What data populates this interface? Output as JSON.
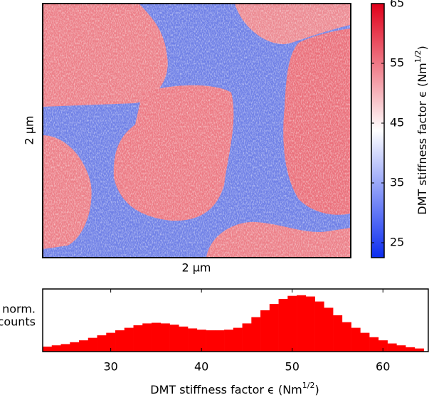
{
  "chart_data": [
    {
      "type": "heatmap",
      "xlabel": "2 μm",
      "ylabel": "2 μm",
      "colorbar": {
        "label": [
          "DMT stiffness factor ϵ (Nm",
          "1/2",
          ")"
        ],
        "lim": [
          22.5,
          65
        ],
        "ticks": [
          25,
          35,
          45,
          55,
          65
        ],
        "colors": [
          "#0b2cf0",
          "#ffffff",
          "#e0001a"
        ]
      }
    },
    {
      "type": "histogram",
      "color": "#ff0000",
      "bins": [
        22.5,
        23.5,
        24.5,
        25.5,
        26.5,
        27.5,
        28.5,
        29.5,
        30.5,
        31.5,
        32.5,
        33.5,
        34.5,
        35.5,
        36.5,
        37.5,
        38.5,
        39.5,
        40.5,
        41.5,
        42.5,
        43.5,
        44.5,
        45.5,
        46.5,
        47.5,
        48.5,
        49.5,
        50.5,
        51.5,
        52.5,
        53.5,
        54.5,
        55.5,
        56.5,
        57.5,
        58.5,
        59.5,
        60.5,
        61.5,
        62.5,
        63.5,
        64.5
      ],
      "values": [
        0.08,
        0.1,
        0.12,
        0.15,
        0.18,
        0.22,
        0.26,
        0.3,
        0.34,
        0.38,
        0.42,
        0.45,
        0.46,
        0.45,
        0.43,
        0.4,
        0.37,
        0.35,
        0.34,
        0.34,
        0.35,
        0.38,
        0.45,
        0.55,
        0.66,
        0.76,
        0.84,
        0.89,
        0.9,
        0.88,
        0.8,
        0.7,
        0.58,
        0.47,
        0.38,
        0.3,
        0.23,
        0.18,
        0.13,
        0.1,
        0.07,
        0.05
      ],
      "xlim": [
        22.5,
        65
      ],
      "xticks": [
        30,
        40,
        50,
        60
      ],
      "ylim": [
        0,
        1
      ],
      "ylabel": [
        "norm.",
        "counts"
      ],
      "xlabel": [
        "DMT stiffness factor ϵ (Nm",
        "1/2",
        ")"
      ]
    }
  ]
}
